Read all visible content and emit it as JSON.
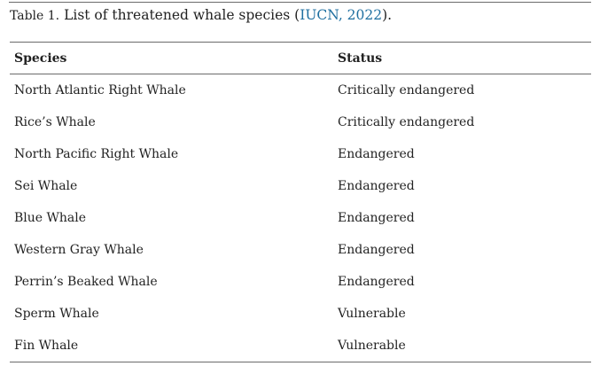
{
  "caption": {
    "label": "Table 1.",
    "text_before": " List of threatened whale species (",
    "citation": "IUCN, 2022",
    "text_after": ")."
  },
  "table": {
    "headers": {
      "species": "Species",
      "status": "Status"
    },
    "rows": [
      {
        "species": "North Atlantic Right Whale",
        "status": "Critically endangered"
      },
      {
        "species": "Rice’s Whale",
        "status": "Critically endangered"
      },
      {
        "species": "North Pacific Right Whale",
        "status": "Endangered"
      },
      {
        "species": "Sei Whale",
        "status": "Endangered"
      },
      {
        "species": "Blue Whale",
        "status": "Endangered"
      },
      {
        "species": "Western Gray Whale",
        "status": "Endangered"
      },
      {
        "species": "Perrin’s Beaked Whale",
        "status": "Endangered"
      },
      {
        "species": "Sperm Whale",
        "status": "Vulnerable"
      },
      {
        "species": "Fin Whale",
        "status": "Vulnerable"
      }
    ]
  },
  "colors": {
    "citation_link": "#1f6fa0",
    "rule": "#6b6b6b",
    "text": "#222222"
  }
}
